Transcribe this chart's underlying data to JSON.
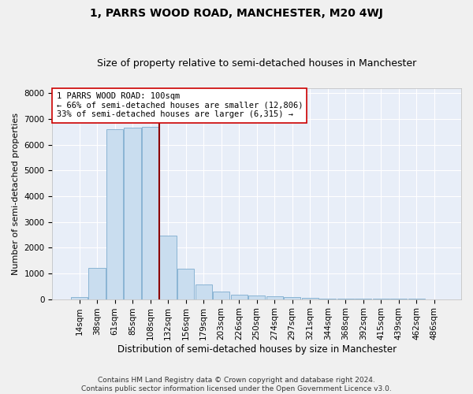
{
  "title": "1, PARRS WOOD ROAD, MANCHESTER, M20 4WJ",
  "subtitle": "Size of property relative to semi-detached houses in Manchester",
  "xlabel": "Distribution of semi-detached houses by size in Manchester",
  "ylabel": "Number of semi-detached properties",
  "bar_color": "#c9ddef",
  "bar_edge_color": "#8ab4d4",
  "background_color": "#e8eef8",
  "grid_color": "#ffffff",
  "vline_color": "#8b0000",
  "vline_x": 4.5,
  "annotation_text": "1 PARRS WOOD ROAD: 100sqm\n← 66% of semi-detached houses are smaller (12,806)\n33% of semi-detached houses are larger (6,315) →",
  "annotation_box_color": "#ffffff",
  "annotation_box_edgecolor": "#cc0000",
  "categories": [
    "14sqm",
    "38sqm",
    "61sqm",
    "85sqm",
    "108sqm",
    "132sqm",
    "156sqm",
    "179sqm",
    "203sqm",
    "226sqm",
    "250sqm",
    "274sqm",
    "297sqm",
    "321sqm",
    "344sqm",
    "368sqm",
    "392sqm",
    "415sqm",
    "439sqm",
    "462sqm",
    "486sqm"
  ],
  "values": [
    80,
    1220,
    6600,
    6650,
    6700,
    2480,
    1170,
    555,
    305,
    185,
    130,
    110,
    90,
    55,
    30,
    15,
    10,
    8,
    5,
    3,
    2
  ],
  "ylim": [
    0,
    8200
  ],
  "yticks": [
    0,
    1000,
    2000,
    3000,
    4000,
    5000,
    6000,
    7000,
    8000
  ],
  "footer_text": "Contains HM Land Registry data © Crown copyright and database right 2024.\nContains public sector information licensed under the Open Government Licence v3.0.",
  "title_fontsize": 10,
  "subtitle_fontsize": 9,
  "xlabel_fontsize": 8.5,
  "ylabel_fontsize": 8,
  "tick_fontsize": 7.5,
  "footer_fontsize": 6.5
}
